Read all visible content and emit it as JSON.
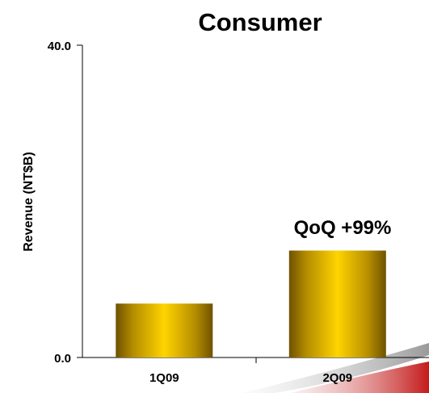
{
  "chart_data": {
    "type": "bar",
    "title": "Consumer",
    "ylabel": "Revenue (NT$B)",
    "xlabel": "",
    "categories": [
      "1Q09",
      "2Q09"
    ],
    "values": [
      6.9,
      13.7
    ],
    "ylim": [
      0,
      40
    ],
    "yticks": [
      "0.0",
      "40.0"
    ],
    "annotation": "QoQ +99%",
    "bar_color": "#d4a800",
    "grid": false,
    "legend": "none"
  }
}
